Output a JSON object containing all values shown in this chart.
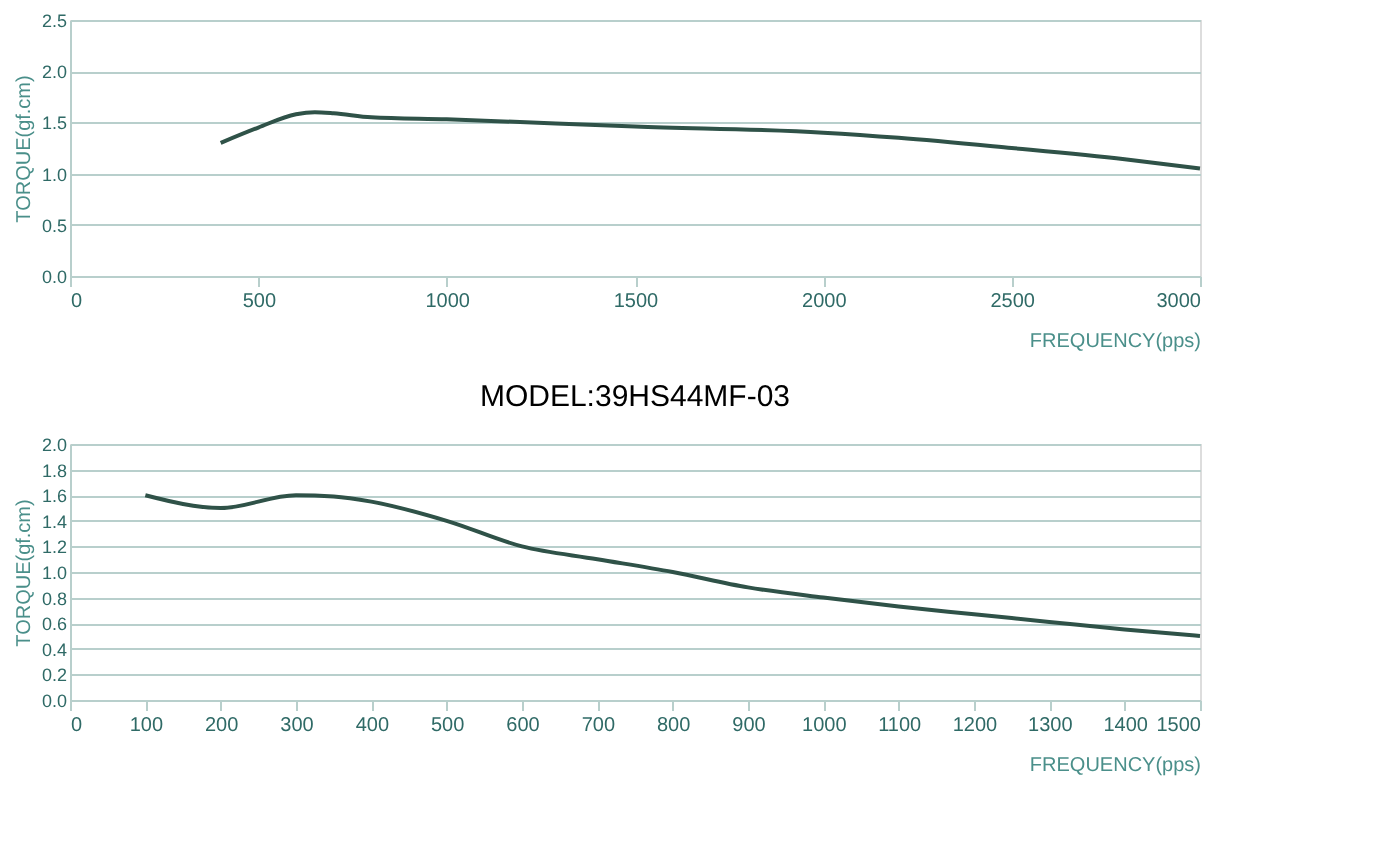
{
  "chart_data": [
    {
      "type": "line",
      "xlabel": "FREQUENCY(pps)",
      "ylabel": "TORQUE(gf.cm)",
      "grid": "y",
      "marker": "none",
      "line_style": "solid",
      "xlim": [
        0,
        3000
      ],
      "xticks": [
        0,
        500,
        1000,
        1500,
        2000,
        2500,
        3000
      ],
      "ylim": [
        0,
        2.5
      ],
      "yticks": [
        {
          "value": 0,
          "label": "0.0"
        },
        0.5,
        {
          "value": 1,
          "label": "1.0"
        },
        1.5,
        {
          "value": 2,
          "label": "2.0"
        },
        2.5
      ],
      "series": [
        {
          "color": "#2f5248",
          "x": [
            400,
            500,
            600,
            650,
            700,
            800,
            1000,
            1500,
            2000,
            2200,
            2500,
            2800,
            3000
          ],
          "values": [
            1.3,
            1.45,
            1.58,
            1.6,
            1.59,
            1.55,
            1.53,
            1.46,
            1.4,
            1.35,
            1.25,
            1.14,
            1.05
          ]
        }
      ]
    },
    {
      "type": "line",
      "title": "MODEL:39HS44MF-03",
      "xlabel": "FREQUENCY(pps)",
      "ylabel": "TORQUE(gf.cm)",
      "grid": "y",
      "marker": "none",
      "line_style": "solid",
      "xlim": [
        0,
        1500
      ],
      "xticks": [
        0,
        100,
        200,
        300,
        400,
        500,
        600,
        700,
        800,
        900,
        1000,
        1100,
        1200,
        1300,
        1400,
        1500
      ],
      "ylim": [
        0,
        2.0
      ],
      "yticks": [
        {
          "value": 0,
          "label": "0.0"
        },
        0.2,
        0.4,
        0.6,
        0.8,
        {
          "value": 1,
          "label": "1.0"
        },
        1.2,
        1.4,
        1.6,
        1.8,
        {
          "value": 2,
          "label": "2.0"
        }
      ],
      "series": [
        {
          "color": "#2f5248",
          "x": [
            100,
            200,
            300,
            350,
            400,
            500,
            600,
            700,
            800,
            900,
            1000,
            1100,
            1200,
            1300,
            1400,
            1500
          ],
          "values": [
            1.6,
            1.5,
            1.6,
            1.59,
            1.55,
            1.4,
            1.2,
            1.1,
            1.0,
            0.88,
            0.8,
            0.73,
            0.67,
            0.61,
            0.55,
            0.5
          ]
        }
      ]
    }
  ]
}
